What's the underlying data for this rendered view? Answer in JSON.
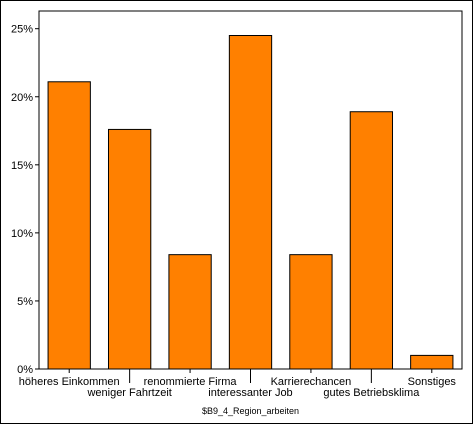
{
  "chart_data": {
    "type": "bar",
    "categories": [
      "höheres Einkommen",
      "weniger Fahrtzeit",
      "renommierte Firma",
      "interessanter Job",
      "Karrierechancen",
      "gutes Betriebsklima",
      "Sonstiges"
    ],
    "values": [
      21.1,
      17.6,
      8.4,
      24.5,
      8.4,
      18.9,
      1.0
    ],
    "y_ticks": [
      "0%",
      "5%",
      "10%",
      "15%",
      "20%",
      "25%"
    ],
    "ylim": [
      0,
      26.3
    ],
    "xlabel": "$B9_4_Region_arbeiten",
    "ylabel": "",
    "title": "",
    "grid": false,
    "colors": {
      "bar_fill": "#FF8000",
      "bar_stroke": "#000000",
      "plot_border": "#000000"
    }
  }
}
